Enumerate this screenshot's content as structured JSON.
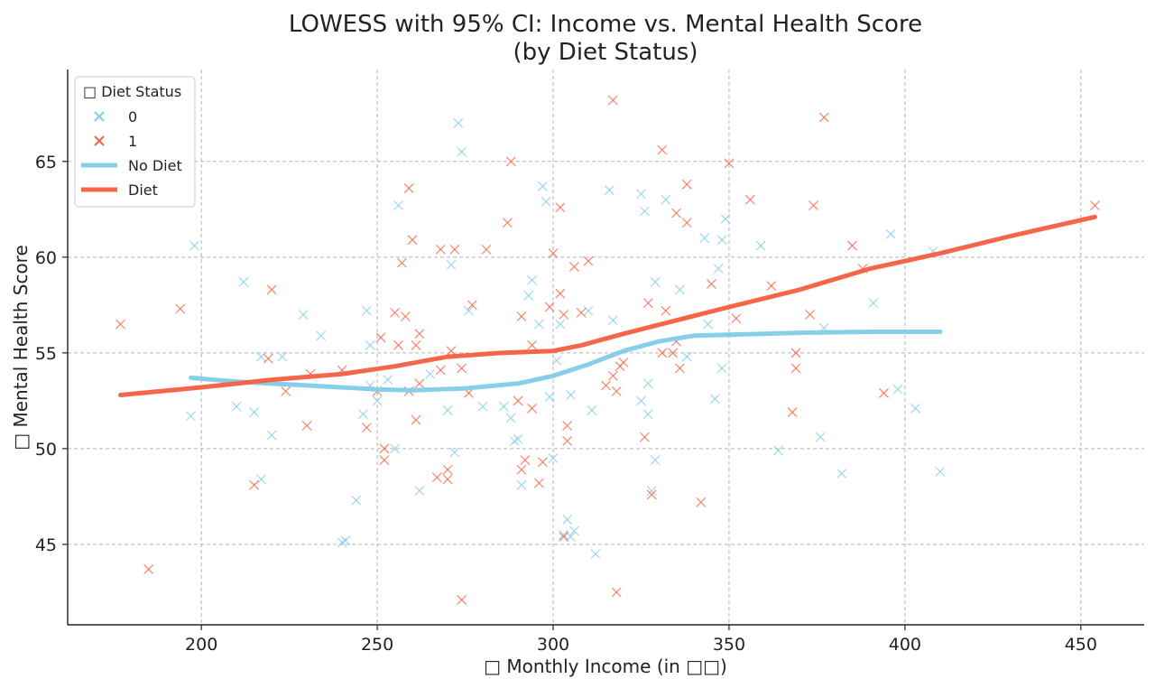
{
  "chart_data": {
    "type": "scatter",
    "title": "LOWESS with 95% CI: Income vs. Mental Health Score",
    "subtitle": "(by Diet Status)",
    "xlabel": "□ Monthly Income (in □□)",
    "ylabel": "□ Mental Health Score",
    "xlim": [
      162,
      468
    ],
    "ylim": [
      40.8,
      69.8
    ],
    "xticks": [
      200,
      250,
      300,
      350,
      400,
      450
    ],
    "yticks": [
      45,
      50,
      55,
      60,
      65
    ],
    "grid": true,
    "legend": {
      "placement": "top-left",
      "title": "□ Diet Status",
      "entries": [
        {
          "label": "0",
          "kind": "marker",
          "color": "#87ceeb"
        },
        {
          "label": "1",
          "kind": "marker",
          "color": "#f4664a"
        },
        {
          "label": "No Diet",
          "kind": "line",
          "color": "#87ceeb"
        },
        {
          "label": "Diet",
          "kind": "line",
          "color": "#f4664a"
        }
      ]
    },
    "series": [
      {
        "name": "0",
        "kind": "scatter",
        "color": "#87ceeb",
        "points": [
          [
            197,
            51.7
          ],
          [
            198,
            60.6
          ],
          [
            210,
            52.2
          ],
          [
            212,
            58.7
          ],
          [
            215,
            51.9
          ],
          [
            217,
            48.4
          ],
          [
            217,
            54.8
          ],
          [
            220,
            50.7
          ],
          [
            223,
            54.8
          ],
          [
            229,
            57.0
          ],
          [
            234,
            55.9
          ],
          [
            240,
            45.1
          ],
          [
            241,
            45.2
          ],
          [
            244,
            47.3
          ],
          [
            246,
            51.8
          ],
          [
            247,
            57.2
          ],
          [
            248,
            55.4
          ],
          [
            248,
            53.3
          ],
          [
            250,
            52.5
          ],
          [
            253,
            53.6
          ],
          [
            255,
            50.0
          ],
          [
            256,
            62.7
          ],
          [
            262,
            47.8
          ],
          [
            265,
            53.9
          ],
          [
            270,
            52.0
          ],
          [
            271,
            59.6
          ],
          [
            272,
            49.8
          ],
          [
            273,
            67.0
          ],
          [
            274,
            65.5
          ],
          [
            276,
            57.2
          ],
          [
            280,
            52.2
          ],
          [
            286,
            52.2
          ],
          [
            288,
            51.6
          ],
          [
            289,
            50.4
          ],
          [
            290,
            50.5
          ],
          [
            291,
            48.1
          ],
          [
            293,
            58.0
          ],
          [
            294,
            58.8
          ],
          [
            296,
            56.5
          ],
          [
            297,
            63.7
          ],
          [
            298,
            62.9
          ],
          [
            299,
            52.7
          ],
          [
            300,
            49.5
          ],
          [
            301,
            54.6
          ],
          [
            302,
            56.5
          ],
          [
            303,
            45.5
          ],
          [
            304,
            46.3
          ],
          [
            305,
            45.4
          ],
          [
            305,
            52.8
          ],
          [
            306,
            45.7
          ],
          [
            310,
            57.2
          ],
          [
            311,
            52.0
          ],
          [
            312,
            44.5
          ],
          [
            316,
            63.5
          ],
          [
            317,
            56.7
          ],
          [
            325,
            52.5
          ],
          [
            325,
            63.3
          ],
          [
            326,
            62.4
          ],
          [
            327,
            51.8
          ],
          [
            327,
            53.4
          ],
          [
            328,
            47.8
          ],
          [
            329,
            49.4
          ],
          [
            329,
            58.7
          ],
          [
            332,
            63.0
          ],
          [
            336,
            58.3
          ],
          [
            338,
            54.8
          ],
          [
            343,
            61.0
          ],
          [
            344,
            56.5
          ],
          [
            346,
            52.6
          ],
          [
            347,
            59.4
          ],
          [
            348,
            60.9
          ],
          [
            348,
            54.2
          ],
          [
            349,
            62.0
          ],
          [
            359,
            60.6
          ],
          [
            364,
            49.9
          ],
          [
            376,
            50.6
          ],
          [
            377,
            56.3
          ],
          [
            382,
            48.7
          ],
          [
            391,
            57.6
          ],
          [
            396,
            61.2
          ],
          [
            398,
            53.1
          ],
          [
            403,
            52.1
          ],
          [
            408,
            60.3
          ],
          [
            410,
            48.8
          ]
        ]
      },
      {
        "name": "1",
        "kind": "scatter",
        "color": "#f4664a",
        "points": [
          [
            177,
            56.5
          ],
          [
            185,
            43.7
          ],
          [
            194,
            57.3
          ],
          [
            215,
            48.1
          ],
          [
            219,
            54.7
          ],
          [
            220,
            58.3
          ],
          [
            224,
            53.0
          ],
          [
            230,
            51.2
          ],
          [
            231,
            53.9
          ],
          [
            240,
            54.1
          ],
          [
            247,
            51.1
          ],
          [
            250,
            53.0
          ],
          [
            251,
            55.8
          ],
          [
            252,
            50.0
          ],
          [
            252,
            49.4
          ],
          [
            255,
            57.1
          ],
          [
            256,
            55.4
          ],
          [
            257,
            59.7
          ],
          [
            258,
            56.9
          ],
          [
            259,
            63.6
          ],
          [
            259,
            53.0
          ],
          [
            260,
            60.9
          ],
          [
            261,
            51.5
          ],
          [
            261,
            55.4
          ],
          [
            262,
            56.0
          ],
          [
            262,
            53.4
          ],
          [
            267,
            48.5
          ],
          [
            268,
            60.4
          ],
          [
            268,
            54.1
          ],
          [
            270,
            48.4
          ],
          [
            270,
            48.9
          ],
          [
            271,
            55.1
          ],
          [
            272,
            60.4
          ],
          [
            274,
            42.1
          ],
          [
            274,
            54.2
          ],
          [
            276,
            52.9
          ],
          [
            277,
            57.5
          ],
          [
            281,
            60.4
          ],
          [
            287,
            61.8
          ],
          [
            288,
            65.0
          ],
          [
            290,
            52.5
          ],
          [
            291,
            56.9
          ],
          [
            291,
            48.9
          ],
          [
            292,
            49.4
          ],
          [
            294,
            55.4
          ],
          [
            294,
            52.1
          ],
          [
            296,
            48.2
          ],
          [
            297,
            49.3
          ],
          [
            299,
            57.4
          ],
          [
            300,
            60.2
          ],
          [
            302,
            62.6
          ],
          [
            302,
            58.1
          ],
          [
            303,
            57.0
          ],
          [
            303,
            45.4
          ],
          [
            304,
            50.4
          ],
          [
            304,
            51.2
          ],
          [
            306,
            59.5
          ],
          [
            308,
            57.1
          ],
          [
            310,
            59.8
          ],
          [
            315,
            53.3
          ],
          [
            317,
            68.2
          ],
          [
            317,
            53.8
          ],
          [
            318,
            53.0
          ],
          [
            318,
            42.5
          ],
          [
            319,
            54.3
          ],
          [
            320,
            54.5
          ],
          [
            326,
            50.6
          ],
          [
            327,
            57.6
          ],
          [
            328,
            47.6
          ],
          [
            331,
            55.0
          ],
          [
            331,
            65.6
          ],
          [
            332,
            57.2
          ],
          [
            334,
            55.0
          ],
          [
            335,
            55.6
          ],
          [
            335,
            62.3
          ],
          [
            336,
            54.2
          ],
          [
            338,
            63.8
          ],
          [
            338,
            61.8
          ],
          [
            342,
            47.2
          ],
          [
            345,
            58.6
          ],
          [
            350,
            64.9
          ],
          [
            352,
            56.8
          ],
          [
            356,
            63.0
          ],
          [
            362,
            58.5
          ],
          [
            368,
            51.9
          ],
          [
            369,
            55.0
          ],
          [
            369,
            54.2
          ],
          [
            373,
            57.0
          ],
          [
            374,
            62.7
          ],
          [
            377,
            67.3
          ],
          [
            385,
            60.6
          ],
          [
            388,
            59.4
          ],
          [
            394,
            52.9
          ],
          [
            454,
            62.7
          ]
        ]
      },
      {
        "name": "No Diet",
        "kind": "line",
        "color": "#87ceeb",
        "points": [
          [
            197,
            53.7
          ],
          [
            210,
            53.5
          ],
          [
            230,
            53.3
          ],
          [
            250,
            53.1
          ],
          [
            260,
            53.05
          ],
          [
            275,
            53.15
          ],
          [
            290,
            53.4
          ],
          [
            300,
            53.8
          ],
          [
            310,
            54.4
          ],
          [
            320,
            55.1
          ],
          [
            330,
            55.6
          ],
          [
            340,
            55.9
          ],
          [
            350,
            55.95
          ],
          [
            370,
            56.05
          ],
          [
            390,
            56.1
          ],
          [
            400,
            56.1
          ],
          [
            410,
            56.1
          ]
        ]
      },
      {
        "name": "Diet",
        "kind": "line",
        "color": "#f4664a",
        "points": [
          [
            177,
            52.8
          ],
          [
            200,
            53.2
          ],
          [
            220,
            53.6
          ],
          [
            240,
            53.9
          ],
          [
            255,
            54.3
          ],
          [
            270,
            54.8
          ],
          [
            285,
            55.0
          ],
          [
            300,
            55.1
          ],
          [
            308,
            55.4
          ],
          [
            320,
            56.0
          ],
          [
            335,
            56.7
          ],
          [
            350,
            57.4
          ],
          [
            370,
            58.3
          ],
          [
            390,
            59.4
          ],
          [
            410,
            60.2
          ],
          [
            430,
            61.1
          ],
          [
            454,
            62.1
          ]
        ]
      }
    ]
  }
}
